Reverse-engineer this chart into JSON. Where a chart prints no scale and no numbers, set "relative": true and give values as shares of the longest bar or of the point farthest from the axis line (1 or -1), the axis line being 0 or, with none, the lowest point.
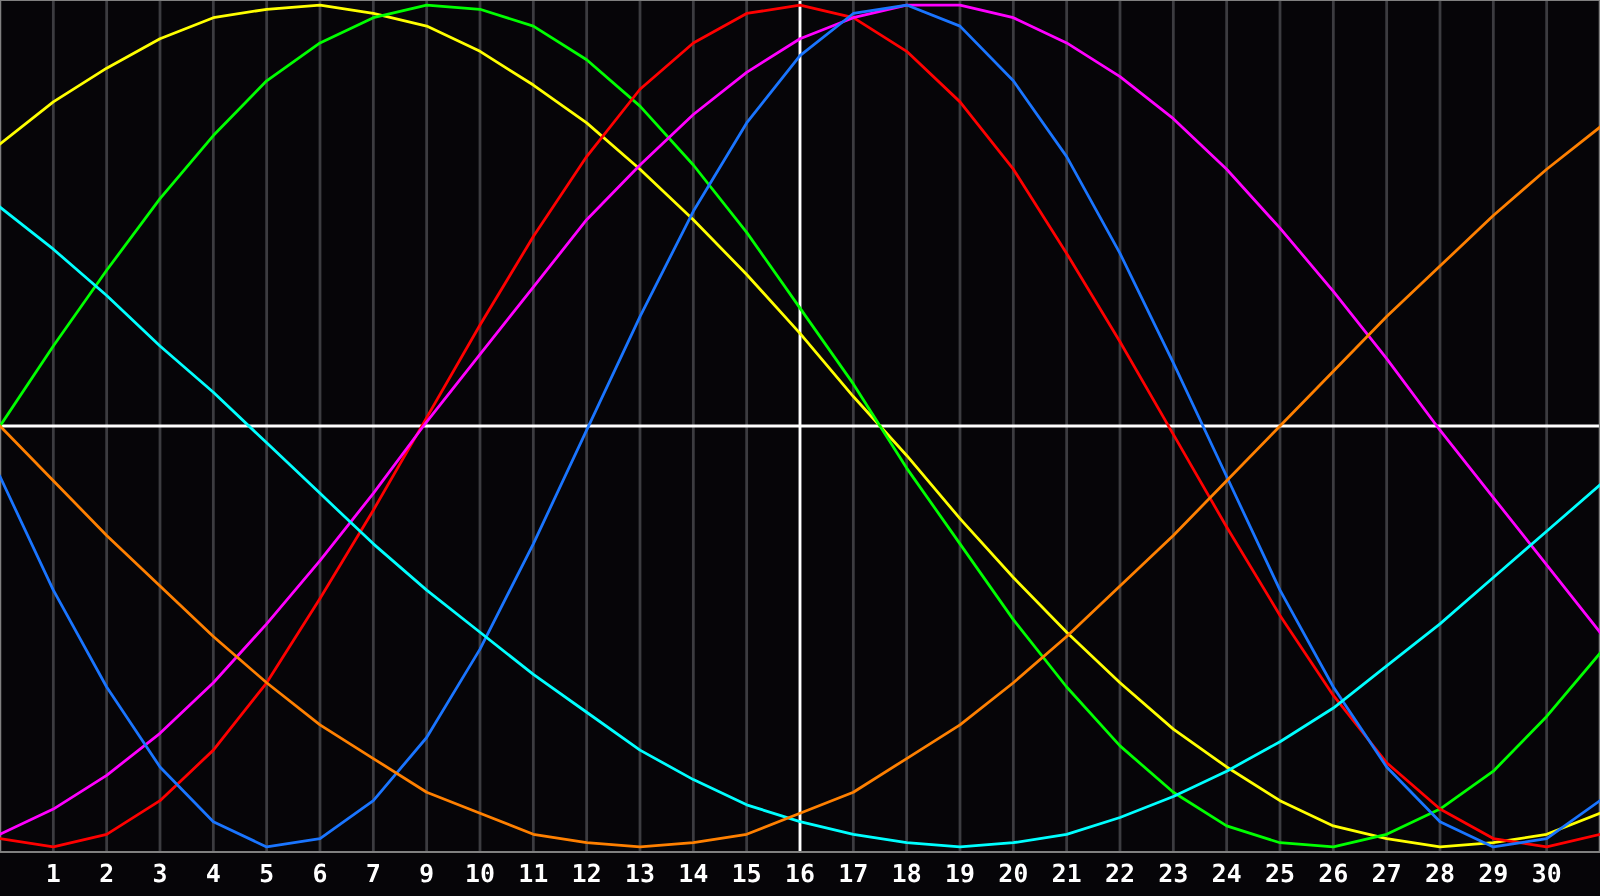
{
  "chart_data": {
    "type": "line",
    "relative": true,
    "grid": "x",
    "marker": "none",
    "line_style": "solid",
    "categories": [
      null,
      "1",
      "2",
      "3",
      "4",
      "5",
      "6",
      "7",
      "9",
      "10",
      "11",
      "12",
      "13",
      "14",
      "15",
      "16",
      "17",
      "18",
      "19",
      "20",
      "21",
      "22",
      "23",
      "24",
      "25",
      "26",
      "27",
      "28",
      "29",
      "30",
      null
    ],
    "series": [
      {
        "color": "#ffff00",
        "values": [
          0.67,
          0.77,
          0.85,
          0.92,
          0.97,
          0.99,
          1.0,
          0.98,
          0.95,
          0.89,
          0.81,
          0.72,
          0.61,
          0.49,
          0.36,
          0.22,
          0.07,
          -0.07,
          -0.22,
          -0.36,
          -0.49,
          -0.61,
          -0.72,
          -0.81,
          -0.89,
          -0.95,
          -0.98,
          -1.0,
          -0.99,
          -0.97,
          -0.92
        ]
      },
      {
        "color": "#00ff00",
        "values": [
          0.0,
          0.19,
          0.37,
          0.54,
          0.69,
          0.82,
          0.91,
          0.97,
          1.0,
          0.99,
          0.95,
          0.87,
          0.76,
          0.62,
          0.46,
          0.28,
          0.1,
          -0.1,
          -0.28,
          -0.46,
          -0.62,
          -0.76,
          -0.87,
          -0.95,
          -0.99,
          -1.0,
          -0.97,
          -0.91,
          -0.82,
          -0.69,
          -0.54
        ]
      },
      {
        "color": "#ff0000",
        "values": [
          -0.98,
          -1.0,
          -0.97,
          -0.89,
          -0.77,
          -0.61,
          -0.41,
          -0.2,
          0.02,
          0.24,
          0.45,
          0.64,
          0.8,
          0.91,
          0.98,
          1.0,
          0.97,
          0.89,
          0.77,
          0.61,
          0.41,
          0.2,
          -0.02,
          -0.24,
          -0.45,
          -0.64,
          -0.8,
          -0.91,
          -0.98,
          -1.0,
          -0.97
        ]
      },
      {
        "color": "#ff00ff",
        "values": [
          -0.97,
          -0.91,
          -0.83,
          -0.73,
          -0.61,
          -0.47,
          -0.32,
          -0.16,
          0.01,
          0.17,
          0.33,
          0.49,
          0.62,
          0.74,
          0.84,
          0.92,
          0.97,
          1.0,
          1.0,
          0.97,
          0.91,
          0.83,
          0.73,
          0.61,
          0.47,
          0.32,
          0.16,
          -0.01,
          -0.17,
          -0.33,
          -0.49
        ]
      },
      {
        "color": "#1a75ff",
        "values": [
          -0.12,
          -0.39,
          -0.62,
          -0.81,
          -0.94,
          -1.0,
          -0.98,
          -0.89,
          -0.74,
          -0.53,
          -0.28,
          -0.01,
          0.26,
          0.51,
          0.72,
          0.88,
          0.98,
          1.0,
          0.95,
          0.82,
          0.64,
          0.41,
          0.15,
          -0.12,
          -0.39,
          -0.62,
          -0.81,
          -0.94,
          -1.0,
          -0.98,
          -0.89
        ]
      },
      {
        "color": "#00ffff",
        "values": [
          0.52,
          0.42,
          0.31,
          0.19,
          0.08,
          -0.04,
          -0.16,
          -0.28,
          -0.39,
          -0.49,
          -0.59,
          -0.68,
          -0.77,
          -0.84,
          -0.9,
          -0.94,
          -0.97,
          -0.99,
          -1.0,
          -0.99,
          -0.97,
          -0.93,
          -0.88,
          -0.82,
          -0.75,
          -0.67,
          -0.57,
          -0.47,
          -0.36,
          -0.25,
          -0.14
        ]
      },
      {
        "color": "#ff8000",
        "values": [
          0.0,
          -0.13,
          -0.26,
          -0.38,
          -0.5,
          -0.61,
          -0.71,
          -0.79,
          -0.87,
          -0.92,
          -0.97,
          -0.99,
          -1.0,
          -0.99,
          -0.97,
          -0.92,
          -0.87,
          -0.79,
          -0.71,
          -0.61,
          -0.5,
          -0.38,
          -0.26,
          -0.13,
          0.0,
          0.13,
          0.26,
          0.38,
          0.5,
          0.61,
          0.71
        ]
      }
    ],
    "ref_lines": [
      {
        "axis": "y",
        "value": 0,
        "color": "#ffffff"
      },
      {
        "axis": "x",
        "value": "16",
        "color": "#ffffff"
      }
    ]
  }
}
